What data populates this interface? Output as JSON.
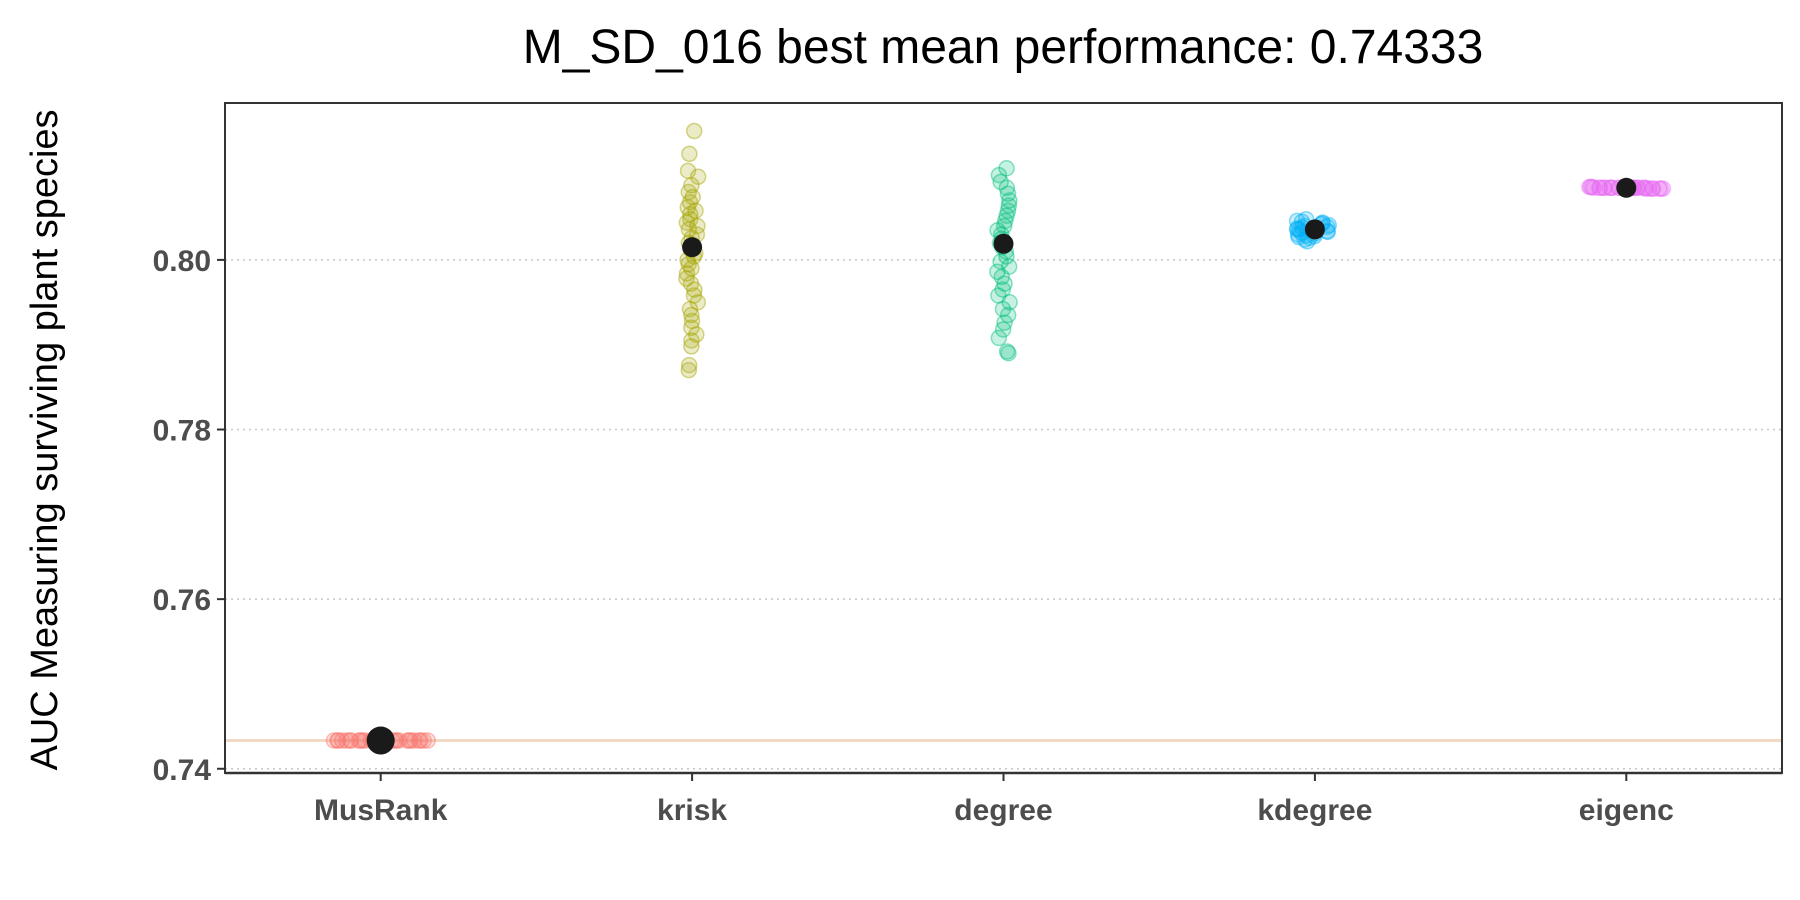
{
  "chart_data": {
    "type": "scatter",
    "title": "M_SD_016 best mean performance: 0.74333",
    "xlabel": "",
    "ylabel": "AUC Measuring surviving plant species",
    "ylim": [
      0.7395,
      0.8185
    ],
    "yticks": [
      0.74,
      0.76,
      0.78,
      0.8
    ],
    "ytick_labels": [
      "0.74",
      "0.76",
      "0.78",
      "0.80"
    ],
    "grid": "horizontal dotted major lines",
    "legend": "none",
    "reference_line": {
      "value": 0.74333,
      "color": "#f2d9c4"
    },
    "mean_color": "#1a1a1a",
    "categories": [
      "MusRank",
      "krisk",
      "degree",
      "kdegree",
      "eigenc"
    ],
    "series": [
      {
        "category": "MusRank",
        "color": "#f8766d",
        "mean": 0.74333,
        "jitter_width": 0.3,
        "points": [
          0.74333,
          0.74333,
          0.74333,
          0.74333,
          0.74333,
          0.74333,
          0.74333,
          0.74333,
          0.74333,
          0.74333,
          0.74333,
          0.74333,
          0.74333,
          0.74333,
          0.74333,
          0.74333,
          0.74333,
          0.74333,
          0.74333,
          0.74333,
          0.74333,
          0.74333,
          0.74333,
          0.74333,
          0.74333,
          0.74333,
          0.74333,
          0.74333,
          0.74333,
          0.74333
        ]
      },
      {
        "category": "krisk",
        "color": "#a3a500",
        "mean": 0.8015,
        "jitter_width": 0.04,
        "points": [
          0.8152,
          0.8125,
          0.8105,
          0.8098,
          0.8088,
          0.808,
          0.8074,
          0.8068,
          0.8062,
          0.8058,
          0.8054,
          0.8048,
          0.8044,
          0.804,
          0.8036,
          0.803,
          0.8026,
          0.802,
          0.8016,
          0.8012,
          0.8008,
          0.8004,
          0.8,
          0.7995,
          0.799,
          0.7984,
          0.7978,
          0.7972,
          0.7965,
          0.7958,
          0.795,
          0.7942,
          0.7935,
          0.7928,
          0.792,
          0.7912,
          0.7905,
          0.7898,
          0.7876,
          0.787
        ]
      },
      {
        "category": "degree",
        "color": "#00bf7d",
        "mean": 0.8019,
        "jitter_width": 0.04,
        "points": [
          0.8108,
          0.81,
          0.8092,
          0.8085,
          0.8078,
          0.807,
          0.8064,
          0.8058,
          0.8052,
          0.8046,
          0.804,
          0.8035,
          0.803,
          0.8025,
          0.802,
          0.8015,
          0.801,
          0.8004,
          0.7998,
          0.7992,
          0.7986,
          0.798,
          0.7972,
          0.7965,
          0.7958,
          0.795,
          0.7942,
          0.7935,
          0.7926,
          0.7918,
          0.7908,
          0.7892,
          0.789
        ]
      },
      {
        "category": "kdegree",
        "color": "#00b0f6",
        "mean": 0.8036,
        "jitter_width": 0.12,
        "points": [
          0.8048,
          0.8046,
          0.8045,
          0.8044,
          0.8043,
          0.8042,
          0.8041,
          0.804,
          0.8039,
          0.8038,
          0.8037,
          0.8036,
          0.8036,
          0.8035,
          0.8034,
          0.8033,
          0.8032,
          0.8031,
          0.803,
          0.8029,
          0.8028,
          0.8027,
          0.8026,
          0.8024,
          0.8022
        ]
      },
      {
        "category": "eigenc",
        "color": "#e76bf3",
        "mean": 0.8085,
        "jitter_width": 0.24,
        "points": [
          0.8086,
          0.8086,
          0.8086,
          0.8085,
          0.8085,
          0.8085,
          0.8085,
          0.8085,
          0.8085,
          0.8085,
          0.8085,
          0.8085,
          0.8085,
          0.8085,
          0.8085,
          0.8085,
          0.8085,
          0.8085,
          0.8085,
          0.8085,
          0.8085,
          0.8085,
          0.8085,
          0.8084,
          0.8084,
          0.8084,
          0.8084,
          0.8084,
          0.8084,
          0.8084
        ]
      }
    ]
  }
}
